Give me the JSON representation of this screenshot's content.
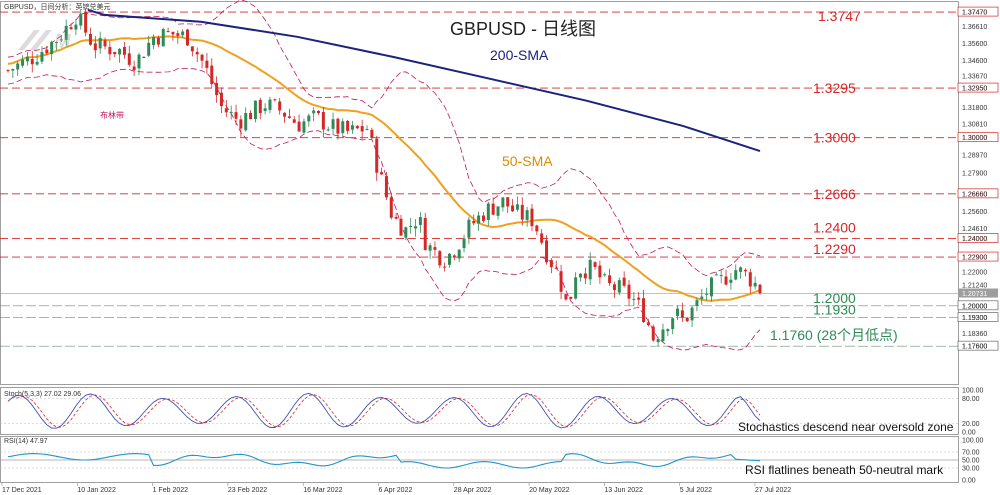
{
  "chart_data": {
    "type": "candlestick",
    "instrument_label": "GBPUSD，日间分析：英镑兑美元",
    "title": "GBPUSD - 日线图",
    "sma200_label": "200-SMA",
    "sma50_label": "50-SMA",
    "bollinger_label": "布林带",
    "ylim": [
      1.1535,
      1.3807
    ],
    "y_ticks": [
      "1.37470",
      "1.36610",
      "1.35600",
      "1.34600",
      "1.33670",
      "1.32950",
      "1.31800",
      "1.30810",
      "1.30000",
      "1.28970",
      "1.27900",
      "1.26660",
      "1.25600",
      "1.24610",
      "1.24000",
      "1.22900",
      "1.22000",
      "1.21240",
      "1.20731",
      "1.20000",
      "1.19300",
      "1.18360",
      "1.17600"
    ],
    "x_ticks": [
      "17 Dec 2021",
      "10 Jan 2022",
      "1 Feb 2022",
      "23 Feb 2022",
      "16 Mar 2022",
      "6 Apr 2022",
      "28 Apr 2022",
      "20 May 2022",
      "13 Jun 2022",
      "5 Jul 2022",
      "27 Jul 2022"
    ],
    "current_price": "1.20731",
    "levels": [
      {
        "value": 1.3747,
        "label": "1.3747",
        "tag": "1.37470",
        "kind": "resistance"
      },
      {
        "value": 1.3295,
        "label": "1.3295",
        "tag": "1.32950",
        "kind": "resistance"
      },
      {
        "value": 1.3,
        "label": "1.3000",
        "tag": "1.30000",
        "kind": "resistance"
      },
      {
        "value": 1.2666,
        "label": "1.2666",
        "tag": "1.26660",
        "kind": "resistance"
      },
      {
        "value": 1.24,
        "label": "1.2400",
        "tag": "1.24000",
        "kind": "resistance"
      },
      {
        "value": 1.229,
        "label": "1.2290",
        "tag": "1.22900",
        "kind": "resistance"
      },
      {
        "value": 1.2,
        "label": "1.2000",
        "tag": "1.20000",
        "kind": "support"
      },
      {
        "value": 1.193,
        "label": "1.1930",
        "tag": "1.19300",
        "kind": "support"
      },
      {
        "value": 1.176,
        "label": "1.1760 (28个月低点)",
        "tag": "1.17600",
        "kind": "support"
      }
    ],
    "stoch": {
      "label": "Stoch(5,3,3) 27.02 29.06",
      "note": "Stochastics descend near oversold zone",
      "y_ticks": [
        "100.00",
        "80.00",
        "20.00",
        "0.00"
      ],
      "ylim": [
        0,
        100
      ]
    },
    "rsi": {
      "label": "RSI(14) 47.97",
      "note": "RSI flatlines beneath 50-neutral mark",
      "y_ticks": [
        "100.00",
        "70.00",
        "50.00",
        "30.00",
        "0.00"
      ],
      "ylim": [
        0,
        100
      ]
    },
    "colors": {
      "bull": "#2e8b57",
      "bear": "#d62728",
      "sma50": "#f0a020",
      "sma200": "#1a237e",
      "bollinger": "#c2185b",
      "stoch_k": "#3f51b5",
      "stoch_d": "#d62728",
      "rsi": "#2196c8"
    }
  }
}
